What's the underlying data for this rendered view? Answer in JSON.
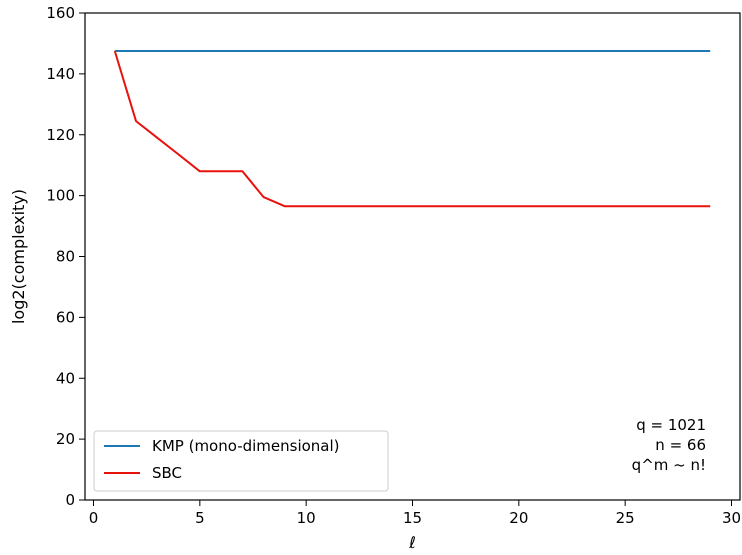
{
  "chart_data": {
    "type": "line",
    "title": "",
    "xlabel": "ℓ",
    "ylabel": "log2(complexity)",
    "xlim": [
      -0.4,
      30.4
    ],
    "ylim": [
      0,
      160
    ],
    "xticks": [
      0,
      5,
      10,
      15,
      20,
      25,
      30
    ],
    "yticks": [
      0,
      20,
      40,
      60,
      80,
      100,
      120,
      140,
      160
    ],
    "grid": false,
    "legend_position": "lower-left",
    "series": [
      {
        "name": "KMP (mono-dimensional)",
        "color": "#1f77b4",
        "x": [
          1,
          29
        ],
        "y": [
          147.5,
          147.5
        ]
      },
      {
        "name": "SBC",
        "color": "#e8120c",
        "x": [
          1,
          2,
          3,
          4,
          5,
          6,
          7,
          8,
          9,
          10,
          11,
          12,
          13,
          14,
          15,
          16,
          17,
          18,
          19,
          20,
          21,
          22,
          23,
          24,
          25,
          26,
          27,
          28,
          29
        ],
        "y": [
          147.5,
          124.5,
          119,
          113.5,
          108,
          108,
          108,
          99.5,
          96.5,
          96.5,
          96.5,
          96.5,
          96.5,
          96.5,
          96.5,
          96.5,
          96.5,
          96.5,
          96.5,
          96.5,
          96.5,
          96.5,
          96.5,
          96.5,
          96.5,
          96.5,
          96.5,
          96.5,
          96.5
        ]
      }
    ],
    "annotations": [
      "q = 1021",
      "n = 66",
      "q^m ~ n!"
    ]
  }
}
